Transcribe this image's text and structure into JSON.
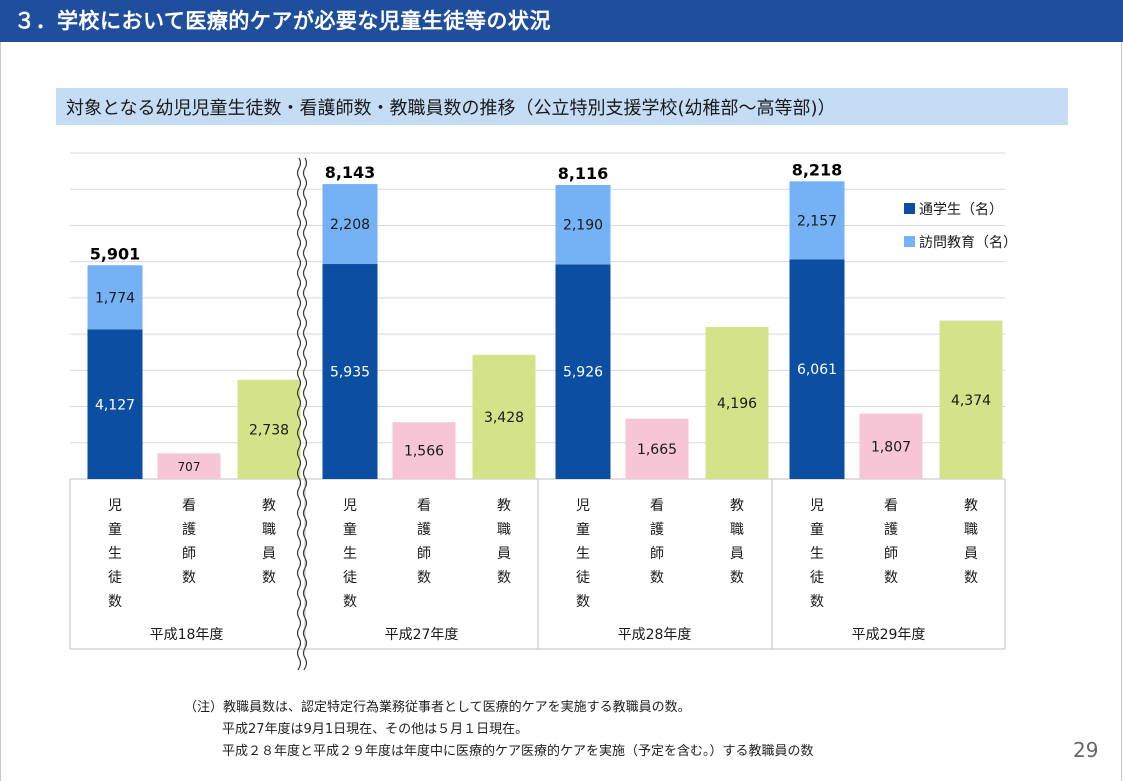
{
  "header": {
    "title": "３．学校において医療的ケアが必要な児童生徒等の状況"
  },
  "subtitle": "対象となる幼児児童生徒数・看護師数・教職員数の推移（公立特別支援学校(幼稚部～高等部)）",
  "chart_data": {
    "type": "bar",
    "stacked": true,
    "ylim": [
      0,
      9000
    ],
    "grid": true,
    "legend_position": "top-right",
    "legend": [
      {
        "name": "通学生（名）",
        "color": "#0b4ea2"
      },
      {
        "name": "訪問教育（名）",
        "color": "#74b2f5"
      }
    ],
    "category_labels": [
      "児童生徒数",
      "看護師数",
      "教職員数"
    ],
    "groups": [
      {
        "label": "平成18年度",
        "students_commuting": 4127,
        "students_visiting": 1774,
        "students_total": "5,901",
        "nurses": 707,
        "staff": 2738,
        "labels": {
          "commuting": "4,127",
          "visiting": "1,774",
          "nurses": "707",
          "staff": "2,738"
        }
      },
      {
        "label": "平成27年度",
        "students_commuting": 5935,
        "students_visiting": 2208,
        "students_total": "8,143",
        "nurses": 1566,
        "staff": 3428,
        "labels": {
          "commuting": "5,935",
          "visiting": "2,208",
          "nurses": "1,566",
          "staff": "3,428"
        }
      },
      {
        "label": "平成28年度",
        "students_commuting": 5926,
        "students_visiting": 2190,
        "students_total": "8,116",
        "nurses": 1665,
        "staff": 4196,
        "labels": {
          "commuting": "5,926",
          "visiting": "2,190",
          "nurses": "1,665",
          "staff": "4,196"
        }
      },
      {
        "label": "平成29年度",
        "students_commuting": 6061,
        "students_visiting": 2157,
        "students_total": "8,218",
        "nurses": 1807,
        "staff": 4374,
        "labels": {
          "commuting": "6,061",
          "visiting": "2,157",
          "nurses": "1,807",
          "staff": "4,374"
        }
      }
    ],
    "colors": {
      "commuting": "#0b4ea2",
      "visiting": "#74b2f5",
      "nurses": "#f7c6d6",
      "staff": "#d4e38a"
    }
  },
  "notes": [
    "（注）教職員数は、認定特定行為業務従事者として医療的ケアを実施する教職員の数。",
    "平成27年度は9月1日現在、その他は５月１日現在。",
    "平成２８年度と平成２９年度は年度中に医療的ケア医療的ケアを実施（予定を含む。）する教職員の数"
  ],
  "page_number": "29"
}
